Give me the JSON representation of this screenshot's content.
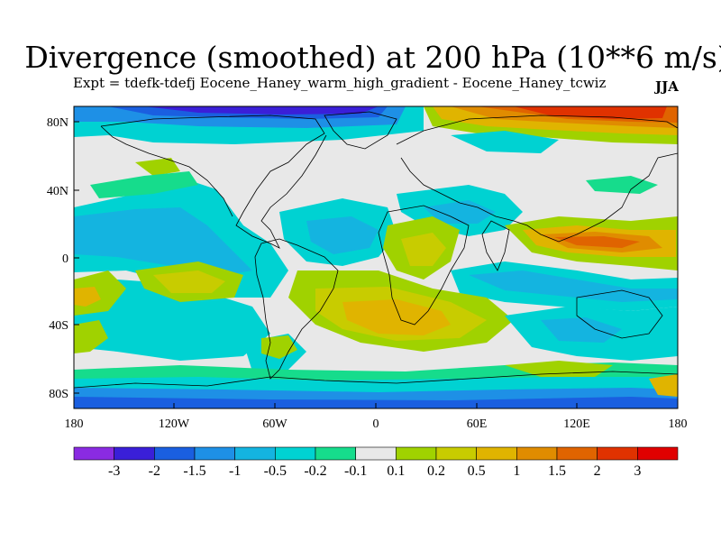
{
  "title": "Divergence (smoothed) at 200 hPa (10**6 m/s)",
  "subtitle": "Expt = tdefk-tdefj Eocene_Haney_warm_high_gradient - Eocene_Haney_tcwiz",
  "season": "JJA",
  "lat_labels": [
    "80N",
    "40N",
    "0",
    "40S",
    "80S"
  ],
  "lon_labels": [
    "180",
    "120W",
    "60W",
    "0",
    "60E",
    "120E",
    "180"
  ],
  "colorbar": {
    "labels": [
      "-3",
      "-2",
      "-1.5",
      "-1",
      "-0.5",
      "-0.2",
      "-0.1",
      "0.1",
      "0.2",
      "0.5",
      "1",
      "1.5",
      "2",
      "3"
    ],
    "colors": [
      "#8a2be2",
      "#3a1fd8",
      "#1a5fe0",
      "#1e90e6",
      "#14b4e0",
      "#00d2d2",
      "#16dc8c",
      "#e8e8e8",
      "#a0d200",
      "#c8cc00",
      "#e0b400",
      "#e08c00",
      "#e06400",
      "#e03200",
      "#e00000"
    ]
  },
  "field_colors": {
    "neutral": "#e8e8e8",
    "neg_weak": "#16dc8c",
    "neg_mod": "#00d2d2",
    "neg_mid": "#14b4e0",
    "neg_strong": "#1e90e6",
    "neg_very": "#1a5fe0",
    "neg_max": "#3a1fd8",
    "pos_weak": "#a0d200",
    "pos_mod": "#c8cc00",
    "pos_mid": "#e0b400",
    "pos_strong": "#e08c00",
    "pos_very": "#e06400",
    "pos_max": "#e03200"
  }
}
